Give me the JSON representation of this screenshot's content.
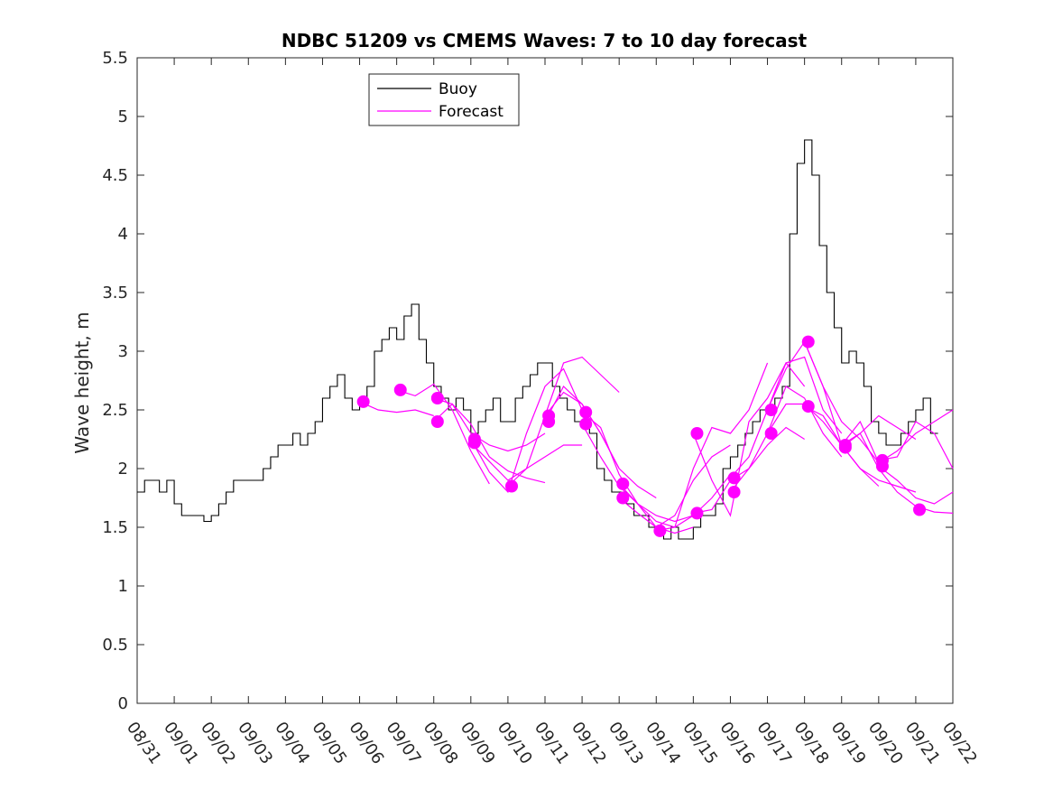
{
  "colors": {
    "buoy": "#000000",
    "forecast": "#ff00ff",
    "axis": "#262626"
  },
  "chart_data": {
    "type": "line",
    "title": "NDBC 51209 vs CMEMS Waves: 7 to 10 day forecast",
    "xlabel": "",
    "ylabel": "Wave height, m",
    "xlim": [
      0,
      22
    ],
    "ylim": [
      0,
      5.5
    ],
    "x_units": "days since 08/31",
    "y_ticks": [
      0,
      0.5,
      1,
      1.5,
      2,
      2.5,
      3,
      3.5,
      4,
      4.5,
      5,
      5.5
    ],
    "y_tick_labels": [
      "0",
      "0.5",
      "1",
      "1.5",
      "2",
      "2.5",
      "3",
      "3.5",
      "4",
      "4.5",
      "5",
      "5.5"
    ],
    "x_tick_labels": [
      "08/31",
      "09/01",
      "09/02",
      "09/03",
      "09/04",
      "09/05",
      "09/06",
      "09/07",
      "09/08",
      "09/09",
      "09/10",
      "09/11",
      "09/12",
      "09/13",
      "09/14",
      "09/15",
      "09/16",
      "09/17",
      "09/18",
      "09/19",
      "09/20",
      "09/21",
      "09/22"
    ],
    "legend": {
      "location": "top-left",
      "entries": [
        "Buoy",
        "Forecast"
      ]
    },
    "series": [
      {
        "name": "Buoy",
        "style": "step-line",
        "x": [
          0,
          0.2,
          0.4,
          0.6,
          0.8,
          1.0,
          1.2,
          1.4,
          1.6,
          1.8,
          2.0,
          2.2,
          2.4,
          2.6,
          2.8,
          3.0,
          3.2,
          3.4,
          3.6,
          3.8,
          4.0,
          4.2,
          4.4,
          4.6,
          4.8,
          5.0,
          5.2,
          5.4,
          5.6,
          5.8,
          6.0,
          6.2,
          6.4,
          6.6,
          6.8,
          7.0,
          7.2,
          7.4,
          7.6,
          7.8,
          8.0,
          8.2,
          8.4,
          8.6,
          8.8,
          9.0,
          9.2,
          9.4,
          9.6,
          9.8,
          10.0,
          10.2,
          10.4,
          10.6,
          10.8,
          11.0,
          11.2,
          11.4,
          11.6,
          11.8,
          12.0,
          12.2,
          12.4,
          12.6,
          12.8,
          13.0,
          13.2,
          13.4,
          13.6,
          13.8,
          14.0,
          14.2,
          14.4,
          14.6,
          14.8,
          15.0,
          15.2,
          15.4,
          15.6,
          15.8,
          16.0,
          16.2,
          16.4,
          16.6,
          16.8,
          17.0,
          17.2,
          17.4,
          17.6,
          17.8,
          18.0,
          18.2,
          18.4,
          18.6,
          18.8,
          19.0,
          19.2,
          19.4,
          19.6,
          19.8,
          20.0,
          20.2,
          20.4,
          20.6,
          20.8,
          21.0,
          21.2,
          21.4
        ],
        "values": [
          1.8,
          1.9,
          1.9,
          1.8,
          1.9,
          1.7,
          1.6,
          1.6,
          1.6,
          1.55,
          1.6,
          1.7,
          1.8,
          1.9,
          1.9,
          1.9,
          1.9,
          2.0,
          2.1,
          2.2,
          2.2,
          2.3,
          2.2,
          2.3,
          2.4,
          2.6,
          2.7,
          2.8,
          2.6,
          2.5,
          2.6,
          2.7,
          3.0,
          3.1,
          3.2,
          3.1,
          3.3,
          3.4,
          3.1,
          2.9,
          2.7,
          2.6,
          2.5,
          2.6,
          2.5,
          2.3,
          2.4,
          2.5,
          2.6,
          2.4,
          2.4,
          2.6,
          2.7,
          2.8,
          2.9,
          2.9,
          2.7,
          2.6,
          2.5,
          2.4,
          2.4,
          2.3,
          2.0,
          1.9,
          1.8,
          1.8,
          1.7,
          1.6,
          1.6,
          1.5,
          1.5,
          1.4,
          1.5,
          1.4,
          1.4,
          1.5,
          1.6,
          1.6,
          1.7,
          2.0,
          2.1,
          2.2,
          2.3,
          2.4,
          2.5,
          2.5,
          2.6,
          2.7,
          4.0,
          4.6,
          4.8,
          4.5,
          3.9,
          3.5,
          3.2,
          2.9,
          3.0,
          2.9,
          2.7,
          2.4,
          2.3,
          2.2,
          2.2,
          2.3,
          2.4,
          2.5,
          2.6,
          2.3
        ]
      },
      {
        "name": "Forecast",
        "style": "line",
        "x": [
          6.0,
          6.5,
          7.0,
          7.5,
          8.0
        ],
        "values": [
          2.57,
          2.5,
          2.48,
          2.5,
          2.45
        ]
      },
      {
        "name": "Forecast",
        "style": "line",
        "x": [
          7.0,
          7.5,
          8.0,
          8.5,
          9.0,
          9.5
        ],
        "values": [
          2.67,
          2.62,
          2.72,
          2.5,
          2.15,
          1.87
        ]
      },
      {
        "name": "Forecast",
        "style": "line",
        "x": [
          8.0,
          8.5,
          9.0,
          9.5,
          10.0,
          10.5,
          11.0
        ],
        "values": [
          2.6,
          2.55,
          2.38,
          2.1,
          1.98,
          1.92,
          1.88
        ]
      },
      {
        "name": "Forecast",
        "style": "line",
        "x": [
          8.0,
          8.5,
          9.0,
          9.5,
          10.0,
          10.5,
          11.0
        ],
        "values": [
          2.4,
          2.55,
          2.3,
          2.2,
          2.15,
          2.2,
          2.3
        ]
      },
      {
        "name": "Forecast",
        "style": "line",
        "x": [
          9.0,
          9.5,
          10.0,
          10.5,
          11.0,
          11.5,
          12.0
        ],
        "values": [
          2.22,
          2.06,
          1.9,
          2.0,
          2.1,
          2.2,
          2.2
        ]
      },
      {
        "name": "Forecast",
        "style": "line",
        "x": [
          9.0,
          9.5,
          10.0,
          10.5,
          11.0,
          11.5,
          12.0
        ],
        "values": [
          2.25,
          1.97,
          1.8,
          2.3,
          2.7,
          2.85,
          2.5
        ]
      },
      {
        "name": "Forecast",
        "style": "line",
        "x": [
          10.0,
          10.5,
          11.0,
          11.5,
          12.0,
          12.5,
          13.0
        ],
        "values": [
          1.85,
          2.0,
          2.45,
          2.65,
          2.55,
          2.3,
          2.0
        ]
      },
      {
        "name": "Forecast",
        "style": "line",
        "x": [
          11.0,
          11.5,
          12.0,
          12.5,
          13.0
        ],
        "values": [
          2.45,
          2.9,
          2.95,
          2.8,
          2.65
        ]
      },
      {
        "name": "Forecast",
        "style": "line",
        "x": [
          11.0,
          11.5,
          12.0,
          12.5,
          13.0,
          13.5,
          14.0
        ],
        "values": [
          2.4,
          2.7,
          2.55,
          2.3,
          2.0,
          1.85,
          1.75
        ]
      },
      {
        "name": "Forecast",
        "style": "line",
        "x": [
          12.0,
          12.5,
          13.0,
          13.5,
          14.0,
          14.5,
          15.0
        ],
        "values": [
          2.48,
          2.35,
          1.95,
          1.7,
          1.6,
          1.55,
          1.6
        ]
      },
      {
        "name": "Forecast",
        "style": "line",
        "x": [
          12.0,
          12.5,
          13.0,
          13.5,
          14.0,
          14.5,
          15.0
        ],
        "values": [
          2.38,
          2.1,
          1.85,
          1.7,
          1.5,
          1.45,
          1.5
        ]
      },
      {
        "name": "Forecast",
        "style": "line",
        "x": [
          13.0,
          13.5,
          14.0,
          14.5,
          15.0,
          15.5,
          16.0
        ],
        "values": [
          1.87,
          1.7,
          1.55,
          1.5,
          1.6,
          1.75,
          1.95
        ]
      },
      {
        "name": "Forecast",
        "style": "line",
        "x": [
          13.0,
          13.5,
          14.0,
          14.5,
          15.0,
          15.5,
          16.0
        ],
        "values": [
          1.75,
          1.62,
          1.5,
          1.6,
          1.9,
          2.1,
          2.2
        ]
      },
      {
        "name": "Forecast",
        "style": "line",
        "x": [
          14.0,
          14.5,
          15.0,
          15.5,
          16.0,
          16.5,
          17.0
        ],
        "values": [
          1.47,
          1.5,
          2.0,
          2.35,
          2.3,
          2.5,
          2.9
        ]
      },
      {
        "name": "Forecast",
        "style": "line",
        "x": [
          15.0,
          15.5,
          16.0,
          16.5,
          17.0,
          17.5,
          18.0
        ],
        "values": [
          2.3,
          1.9,
          1.6,
          2.4,
          2.6,
          2.9,
          2.7
        ]
      },
      {
        "name": "Forecast",
        "style": "line",
        "x": [
          15.0,
          15.5,
          16.0,
          16.5,
          17.0,
          17.5,
          18.0
        ],
        "values": [
          1.62,
          1.65,
          1.9,
          2.0,
          2.2,
          2.35,
          2.25
        ]
      },
      {
        "name": "Forecast",
        "style": "line",
        "x": [
          16.0,
          16.5,
          17.0,
          17.5,
          18.0,
          18.5,
          19.0
        ],
        "values": [
          1.92,
          2.1,
          2.5,
          2.9,
          2.95,
          2.5,
          2.3
        ]
      },
      {
        "name": "Forecast",
        "style": "line",
        "x": [
          16.0,
          16.5,
          17.0,
          17.5,
          18.0,
          18.5,
          19.0
        ],
        "values": [
          1.8,
          2.0,
          2.3,
          2.7,
          2.6,
          2.3,
          2.1
        ]
      },
      {
        "name": "Forecast",
        "style": "line",
        "x": [
          17.0,
          17.5,
          18.0,
          18.5,
          19.0,
          19.5,
          20.0
        ],
        "values": [
          2.5,
          2.85,
          3.08,
          2.7,
          2.4,
          2.25,
          2.05
        ]
      },
      {
        "name": "Forecast",
        "style": "line",
        "x": [
          17.0,
          17.5,
          18.0,
          18.5,
          19.0,
          19.5,
          20.0
        ],
        "values": [
          2.3,
          2.55,
          2.55,
          2.4,
          2.2,
          2.0,
          1.85
        ]
      },
      {
        "name": "Forecast",
        "style": "line",
        "x": [
          18.0,
          18.5,
          19.0,
          19.5,
          20.0,
          20.5,
          21.0
        ],
        "values": [
          3.08,
          2.7,
          2.2,
          2.3,
          2.45,
          2.35,
          2.25
        ]
      },
      {
        "name": "Forecast",
        "style": "line",
        "x": [
          18.0,
          18.5,
          19.0,
          19.5,
          20.0,
          20.5,
          21.0
        ],
        "values": [
          2.53,
          2.45,
          2.2,
          2.0,
          1.9,
          1.85,
          1.8
        ]
      },
      {
        "name": "Forecast",
        "style": "line",
        "x": [
          19.0,
          19.5,
          20.0,
          20.5,
          21.0,
          21.5,
          22.0
        ],
        "values": [
          2.2,
          2.4,
          2.05,
          2.15,
          2.3,
          2.4,
          2.5
        ]
      },
      {
        "name": "Forecast",
        "style": "line",
        "x": [
          19.0,
          19.5,
          20.0,
          20.5,
          21.0,
          21.5,
          22.0
        ],
        "values": [
          2.18,
          2.3,
          2.0,
          1.8,
          1.68,
          1.63,
          1.62
        ]
      },
      {
        "name": "Forecast",
        "style": "line",
        "x": [
          20.0,
          20.5,
          21.0,
          21.5,
          22.0
        ],
        "values": [
          2.07,
          2.1,
          2.4,
          2.3,
          2.0
        ]
      },
      {
        "name": "Forecast",
        "style": "line",
        "x": [
          20.0,
          20.5,
          21.0,
          21.5,
          22.0
        ],
        "values": [
          2.02,
          1.9,
          1.75,
          1.7,
          1.8
        ]
      }
    ],
    "forecast_markers": {
      "name": "Forecast",
      "x": [
        6.1,
        7.1,
        8.1,
        8.1,
        9.1,
        9.1,
        10.1,
        11.1,
        11.1,
        12.1,
        12.1,
        13.1,
        13.1,
        14.1,
        15.1,
        15.1,
        16.1,
        16.1,
        17.1,
        17.1,
        18.1,
        18.1,
        19.1,
        19.1,
        20.1,
        20.1,
        21.1
      ],
      "values": [
        2.57,
        2.67,
        2.6,
        2.4,
        2.22,
        2.25,
        1.85,
        2.45,
        2.4,
        2.48,
        2.38,
        1.87,
        1.75,
        1.47,
        2.3,
        1.62,
        1.92,
        1.8,
        2.5,
        2.3,
        3.08,
        2.53,
        2.2,
        2.18,
        2.07,
        2.02,
        1.65
      ]
    }
  }
}
